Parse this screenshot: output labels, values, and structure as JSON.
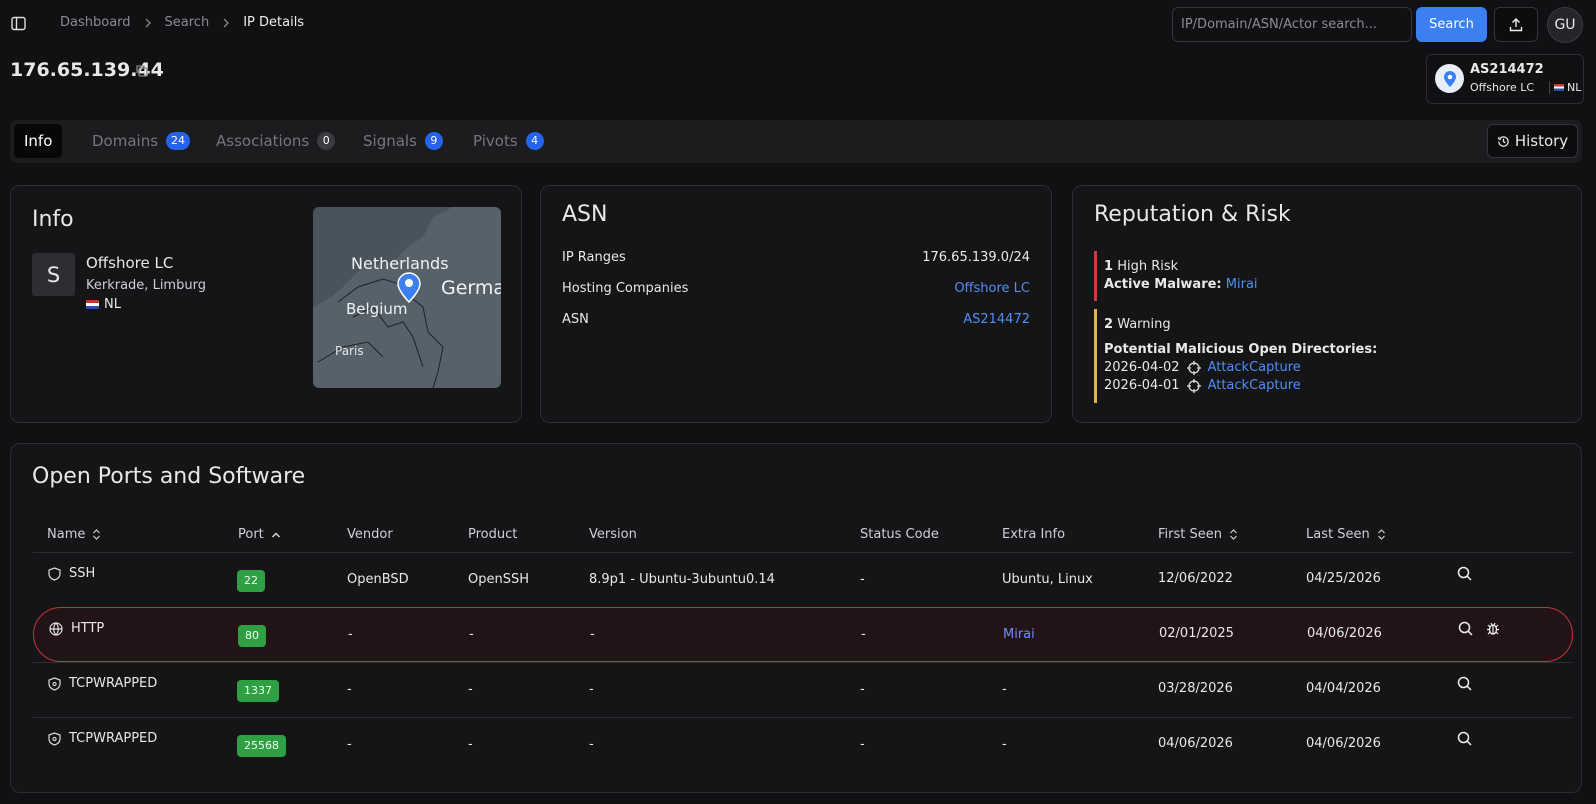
{
  "nav": {
    "breadcrumbs": [
      "Dashboard",
      "Search",
      "IP Details"
    ],
    "search_placeholder": "IP/Domain/ASN/Actor search...",
    "search_button": "Search",
    "avatar": "GU"
  },
  "header": {
    "ip": "176.65.139.44",
    "asn": "AS214472",
    "org": "Offshore LC",
    "country": "NL"
  },
  "tabs": [
    {
      "label": "Info"
    },
    {
      "label": "Domains",
      "count": 24
    },
    {
      "label": "Associations",
      "count": 0
    },
    {
      "label": "Signals",
      "count": 9
    },
    {
      "label": "Pivots",
      "count": 4
    }
  ],
  "history_button": "History",
  "info_card": {
    "title": "Info",
    "initial": "S",
    "org": "Offshore LC",
    "location": "Kerkrade, Limburg",
    "country": "NL",
    "map_labels": [
      "Netherlands",
      "Belgium",
      "Germa",
      "Paris"
    ]
  },
  "asn_card": {
    "title": "ASN",
    "rows": [
      {
        "label": "IP Ranges",
        "value": "176.65.139.0/24"
      },
      {
        "label": "Hosting Companies",
        "value": "Offshore LC"
      },
      {
        "label": "ASN",
        "value": "AS214472"
      }
    ]
  },
  "reputation_card": {
    "title": "Reputation & Risk",
    "high": {
      "count": 1,
      "label": "High Risk",
      "detail_label": "Active Malware:",
      "detail_value": "Mirai"
    },
    "warning": {
      "count": 2,
      "label": "Warning",
      "heading": "Potential Malicious Open Directories:",
      "items": [
        {
          "date": "2026-04-02",
          "name": "AttackCapture"
        },
        {
          "date": "2026-04-01",
          "name": "AttackCapture"
        }
      ]
    }
  },
  "ports": {
    "title": "Open Ports and Software",
    "columns": [
      "Name",
      "Port",
      "Vendor",
      "Product",
      "Version",
      "Status Code",
      "Extra Info",
      "First Seen",
      "Last Seen"
    ],
    "rows": [
      {
        "name": "SSH",
        "port": 22,
        "vendor": "OpenBSD",
        "product": "OpenSSH",
        "version": "8.9p1 - Ubuntu-3ubuntu0.14",
        "status": "-",
        "extra": "Ubuntu, Linux",
        "first_seen": "12/06/2022",
        "last_seen": "04/25/2026"
      },
      {
        "name": "HTTP",
        "port": 80,
        "vendor": "-",
        "product": "-",
        "version": "-",
        "status": "-",
        "extra": "Mirai",
        "first_seen": "02/01/2025",
        "last_seen": "04/06/2026"
      },
      {
        "name": "TCPWRAPPED",
        "port": 1337,
        "vendor": "-",
        "product": "-",
        "version": "-",
        "status": "-",
        "extra": "-",
        "first_seen": "03/28/2026",
        "last_seen": "04/04/2026"
      },
      {
        "name": "TCPWRAPPED",
        "port": 25568,
        "vendor": "-",
        "product": "-",
        "version": "-",
        "status": "-",
        "extra": "-",
        "first_seen": "04/06/2026",
        "last_seen": "04/06/2026"
      }
    ]
  }
}
